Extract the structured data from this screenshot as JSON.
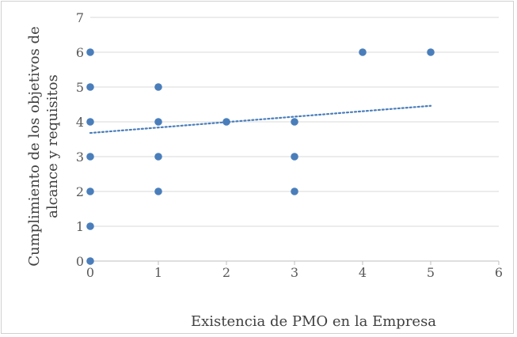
{
  "chart_data": {
    "type": "scatter",
    "xlabel": "Existencia de PMO en la Empresa",
    "ylabel_lines": [
      "Cumplimiento de los objetivos de",
      "alcance y requisitos"
    ],
    "xlim": [
      0,
      6
    ],
    "ylim": [
      0,
      7
    ],
    "x_ticks": [
      0,
      1,
      2,
      3,
      4,
      5,
      6
    ],
    "y_ticks": [
      0,
      1,
      2,
      3,
      4,
      5,
      6,
      7
    ],
    "grid": "horizontal",
    "points": [
      {
        "x": 0,
        "y": 0
      },
      {
        "x": 0,
        "y": 1
      },
      {
        "x": 0,
        "y": 2
      },
      {
        "x": 0,
        "y": 3
      },
      {
        "x": 0,
        "y": 4
      },
      {
        "x": 0,
        "y": 5
      },
      {
        "x": 0,
        "y": 6
      },
      {
        "x": 1,
        "y": 2
      },
      {
        "x": 1,
        "y": 3
      },
      {
        "x": 1,
        "y": 4
      },
      {
        "x": 1,
        "y": 5
      },
      {
        "x": 2,
        "y": 4
      },
      {
        "x": 3,
        "y": 2
      },
      {
        "x": 3,
        "y": 3
      },
      {
        "x": 3,
        "y": 4
      },
      {
        "x": 4,
        "y": 6
      },
      {
        "x": 5,
        "y": 6
      }
    ],
    "trendline": {
      "type": "linear",
      "style": "dotted",
      "x": [
        0,
        5
      ],
      "y": [
        3.68,
        4.46
      ]
    },
    "colors": {
      "points": "#4a7ebb",
      "trendline": "#4a7ebb",
      "grid": "#d9d9d9",
      "axis": "#bfbfbf"
    }
  }
}
